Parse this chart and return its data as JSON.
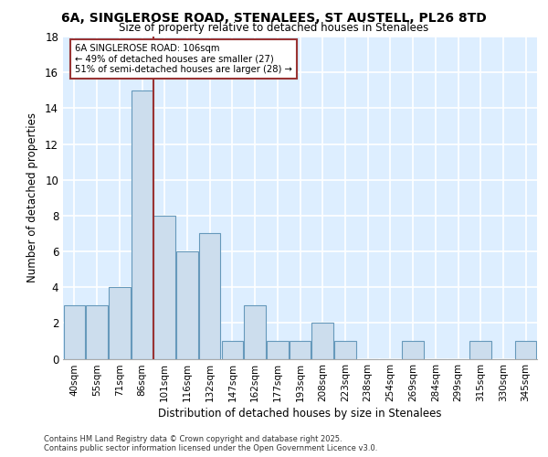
{
  "title_line1": "6A, SINGLEROSE ROAD, STENALEES, ST AUSTELL, PL26 8TD",
  "title_line2": "Size of property relative to detached houses in Stenalees",
  "xlabel": "Distribution of detached houses by size in Stenalees",
  "ylabel": "Number of detached properties",
  "categories": [
    "40sqm",
    "55sqm",
    "71sqm",
    "86sqm",
    "101sqm",
    "116sqm",
    "132sqm",
    "147sqm",
    "162sqm",
    "177sqm",
    "193sqm",
    "208sqm",
    "223sqm",
    "238sqm",
    "254sqm",
    "269sqm",
    "284sqm",
    "299sqm",
    "315sqm",
    "330sqm",
    "345sqm"
  ],
  "values": [
    3,
    3,
    4,
    15,
    8,
    6,
    7,
    1,
    3,
    1,
    1,
    2,
    1,
    0,
    0,
    1,
    0,
    0,
    1,
    0,
    1
  ],
  "bar_color": "#ccdded",
  "bar_edge_color": "#6699bb",
  "background_color": "#ddeeff",
  "grid_color": "#ffffff",
  "vline_x_index": 3.5,
  "vline_color": "#993333",
  "annotation_text": "6A SINGLEROSE ROAD: 106sqm\n← 49% of detached houses are smaller (27)\n51% of semi-detached houses are larger (28) →",
  "annotation_box_color": "#ffffff",
  "annotation_box_edge": "#993333",
  "ylim": [
    0,
    18
  ],
  "yticks": [
    0,
    2,
    4,
    6,
    8,
    10,
    12,
    14,
    16,
    18
  ],
  "footer_line1": "Contains HM Land Registry data © Crown copyright and database right 2025.",
  "footer_line2": "Contains public sector information licensed under the Open Government Licence v3.0."
}
